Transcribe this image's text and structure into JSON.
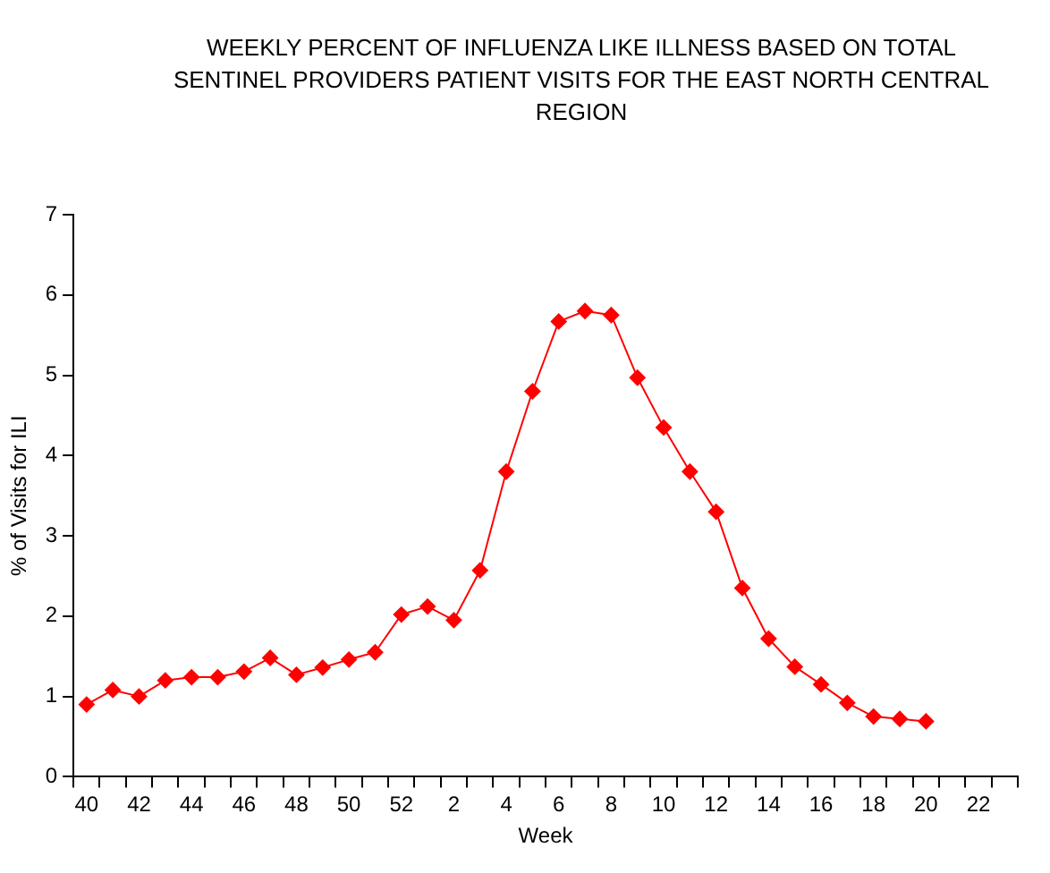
{
  "chart_data": {
    "type": "line",
    "title": "WEEKLY PERCENT OF INFLUENZA LIKE ILLNESS BASED ON TOTAL SENTINEL PROVIDERS PATIENT VISITS FOR THE EAST NORTH CENTRAL REGION",
    "xlabel": "Week",
    "ylabel": "% of Visits for ILI",
    "categories": [
      "40",
      null,
      "42",
      null,
      "44",
      null,
      "46",
      null,
      "48",
      null,
      "50",
      null,
      "52",
      null,
      "2",
      null,
      "4",
      null,
      "6",
      null,
      "8",
      null,
      "10",
      null,
      "12",
      null,
      "14",
      null,
      "16",
      null,
      "18",
      null,
      "20",
      null,
      "22",
      null
    ],
    "series": [
      {
        "color": "#ff0000",
        "values": [
          0.9,
          1.08,
          1.0,
          1.2,
          1.24,
          1.24,
          1.31,
          1.48,
          1.27,
          1.36,
          1.46,
          1.55,
          2.02,
          2.12,
          1.95,
          2.57,
          3.8,
          4.8,
          5.67,
          5.8,
          5.75,
          4.97,
          4.35,
          3.8,
          3.3,
          2.35,
          1.72,
          1.37,
          1.15,
          0.92,
          0.75,
          0.72,
          0.69,
          null,
          null,
          null
        ]
      }
    ],
    "ylim": [
      0,
      7
    ],
    "yticks": [
      0,
      1,
      2,
      3,
      4,
      5,
      6,
      7
    ],
    "grid": false,
    "legend": false,
    "marker": "diamond",
    "line_style": "solid"
  }
}
